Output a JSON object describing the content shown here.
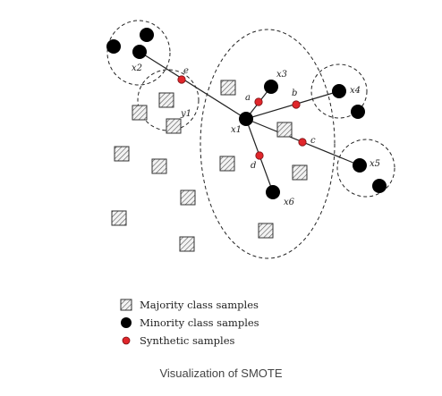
{
  "caption": "Visualization of SMOTE",
  "colors": {
    "minority": "#000000",
    "synthetic": "#e0262b",
    "majority_fill": "#f3f3f3",
    "majority_hatch": "#555555",
    "line": "#222222"
  },
  "point_labels": {
    "x1": "x1",
    "x2": "x2",
    "x3": "x3",
    "x4": "x4",
    "x5": "x5",
    "x6": "x6",
    "y1": "y1",
    "a": "a",
    "b": "b",
    "c": "c",
    "d": "d",
    "e": "e"
  },
  "legend": {
    "majority": "Majority class samples",
    "minority": "Minority class samples",
    "synthetic": "Synthetic samples"
  }
}
